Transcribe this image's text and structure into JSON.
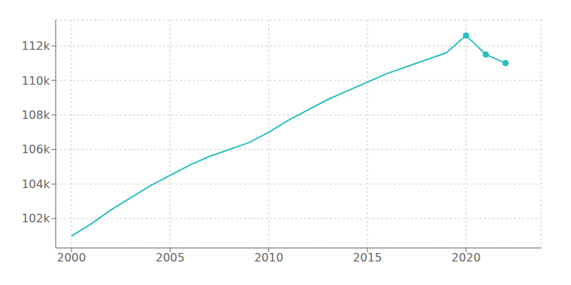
{
  "chart_data": {
    "type": "line",
    "x": [
      2000,
      2001,
      2002,
      2003,
      2004,
      2005,
      2006,
      2007,
      2008,
      2009,
      2010,
      2011,
      2012,
      2013,
      2014,
      2015,
      2016,
      2017,
      2018,
      2019,
      2020,
      2021,
      2022
    ],
    "series": [
      {
        "color": "#2ABFBF",
        "values": [
          100983,
          101700,
          102500,
          103200,
          103900,
          104500,
          105100,
          105600,
          106000,
          106400,
          107000,
          107700,
          108300,
          108900,
          109400,
          109900,
          110400,
          110800,
          111200,
          111600,
          112600,
          111500,
          111000
        ],
        "marker": "circle",
        "marker_x": [
          2020,
          2021,
          2022
        ]
      }
    ],
    "xlim": [
      1999.2,
      2023.8
    ],
    "xticks": [
      2000,
      2005,
      2010,
      2015,
      2020
    ],
    "ylim": [
      100300,
      113500
    ],
    "yticks": [
      {
        "value": 102000,
        "label": "102k"
      },
      {
        "value": 104000,
        "label": "104k"
      },
      {
        "value": 106000,
        "label": "106k"
      },
      {
        "value": 108000,
        "label": "108k"
      },
      {
        "value": 110000,
        "label": "110k"
      },
      {
        "value": 112000,
        "label": "112k"
      }
    ],
    "grid": true
  }
}
